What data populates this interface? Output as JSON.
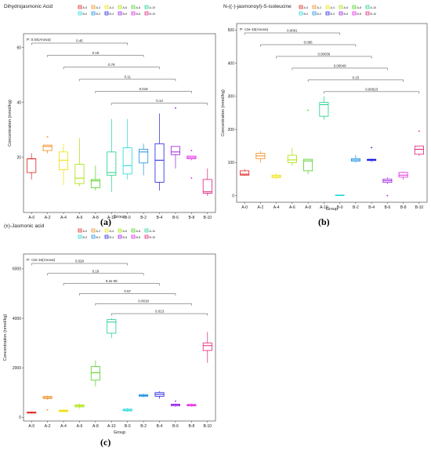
{
  "chart_data": [
    {
      "type": "box",
      "title": "Dihydrojasmonic Acid",
      "stat_text": "P: 0.04(Anova)",
      "xlabel": "Group",
      "ylabel": "Concentration (nmol/kg)",
      "ylim": [
        0,
        65
      ],
      "yticks": [
        20,
        40,
        60
      ],
      "categories": [
        "A-0",
        "A-2",
        "A-4",
        "A-6",
        "A-8",
        "A-10",
        "B-0",
        "B-2",
        "B-4",
        "B-6",
        "B-8",
        "B-10"
      ],
      "legend": {
        "position": "top",
        "entries": [
          "A-0",
          "A-2",
          "A-4",
          "A-6",
          "A-8",
          "A-10",
          "B-0",
          "B-2",
          "B-4",
          "B-6",
          "B-8",
          "B-10"
        ]
      },
      "panel_label": "(a)",
      "boxes": [
        {
          "min": 12,
          "q1": 14.5,
          "median": 19.5,
          "q3": 19.5,
          "max": 21.5,
          "outliers": []
        },
        {
          "min": 21.5,
          "q1": 22.5,
          "median": 24,
          "q3": 24.5,
          "max": 24.5,
          "outliers": [
            27.5
          ]
        },
        {
          "min": 10,
          "q1": 15.5,
          "median": 19,
          "q3": 22,
          "max": 25,
          "outliers": []
        },
        {
          "min": 9.5,
          "q1": 10.5,
          "median": 12.5,
          "q3": 17.5,
          "max": 27,
          "outliers": []
        },
        {
          "min": 8,
          "q1": 9,
          "median": 11.5,
          "q3": 12,
          "max": 17,
          "outliers": []
        },
        {
          "min": 7.5,
          "q1": 13.5,
          "median": 14.5,
          "q3": 22,
          "max": 34,
          "outliers": []
        },
        {
          "min": 12,
          "q1": 14,
          "median": 17,
          "q3": 23.5,
          "max": 34,
          "outliers": []
        },
        {
          "min": 13.5,
          "q1": 18,
          "median": 22,
          "q3": 23,
          "max": 25,
          "outliers": []
        },
        {
          "min": 8,
          "q1": 11,
          "median": 19,
          "q3": 25,
          "max": 36,
          "outliers": []
        },
        {
          "min": 16,
          "q1": 21,
          "median": 22,
          "q3": 24,
          "max": 24,
          "outliers": [
            38
          ]
        },
        {
          "min": 19,
          "q1": 19.5,
          "median": 20,
          "q3": 20.5,
          "max": 20.5,
          "outliers": [
            12.5,
            22.5
          ]
        },
        {
          "min": 6,
          "q1": 7,
          "median": 7.5,
          "q3": 12,
          "max": 16,
          "outliers": []
        }
      ],
      "comparisons": [
        {
          "from": "A-0",
          "to": "B-0",
          "label": "0.45"
        },
        {
          "from": "A-2",
          "to": "B-2",
          "label": "0.18"
        },
        {
          "from": "A-4",
          "to": "B-4",
          "label": "0.78"
        },
        {
          "from": "A-6",
          "to": "B-6",
          "label": "0.11"
        },
        {
          "from": "A-8",
          "to": "B-8",
          "label": "0.019"
        },
        {
          "from": "A-10",
          "to": "B-10",
          "label": "0.14"
        }
      ]
    },
    {
      "type": "box",
      "title": "N-((-)-jasmonoyl)-S-isoleucine",
      "stat_text": "P: <2e-16(Anova)",
      "xlabel": "Group",
      "ylabel": "Concentration (nmol/kg)",
      "ylim": [
        -20,
        520
      ],
      "yticks": [
        0,
        100,
        200,
        300,
        400,
        500
      ],
      "categories": [
        "A-0",
        "A-2",
        "A-4",
        "A-6",
        "A-8",
        "A-10",
        "B-0",
        "B-2",
        "B-4",
        "B-6",
        "B-8",
        "B-10"
      ],
      "legend": {
        "position": "top",
        "entries": [
          "A-0",
          "A-2",
          "A-4",
          "A-6",
          "A-8",
          "A-10",
          "B-0",
          "B-2",
          "B-4",
          "B-6",
          "B-8",
          "B-10"
        ]
      },
      "panel_label": "(b)",
      "boxes": [
        {
          "min": 60,
          "q1": 62,
          "median": 65,
          "q3": 75,
          "max": 80,
          "outliers": []
        },
        {
          "min": 100,
          "q1": 112,
          "median": 120,
          "q3": 128,
          "max": 135,
          "outliers": []
        },
        {
          "min": 50,
          "q1": 54,
          "median": 58,
          "q3": 62,
          "max": 68,
          "outliers": []
        },
        {
          "min": 90,
          "q1": 100,
          "median": 108,
          "q3": 122,
          "max": 145,
          "outliers": []
        },
        {
          "min": 65,
          "q1": 75,
          "median": 105,
          "q3": 110,
          "max": 110,
          "outliers": [
            258
          ]
        },
        {
          "min": 230,
          "q1": 240,
          "median": 275,
          "q3": 282,
          "max": 300,
          "outliers": []
        },
        {
          "min": 0,
          "q1": 0,
          "median": 1,
          "q3": 2,
          "max": 2,
          "outliers": []
        },
        {
          "min": 100,
          "q1": 104,
          "median": 108,
          "q3": 112,
          "max": 122,
          "outliers": []
        },
        {
          "min": 102,
          "q1": 106,
          "median": 108,
          "q3": 110,
          "max": 112,
          "outliers": [
            145
          ]
        },
        {
          "min": 35,
          "q1": 40,
          "median": 45,
          "q3": 50,
          "max": 55,
          "outliers": [
            0
          ]
        },
        {
          "min": 48,
          "q1": 56,
          "median": 62,
          "q3": 70,
          "max": 72,
          "outliers": []
        },
        {
          "min": 120,
          "q1": 125,
          "median": 140,
          "q3": 150,
          "max": 150,
          "outliers": [
            195
          ]
        }
      ],
      "comparisons": [
        {
          "from": "A-0",
          "to": "B-0",
          "label": "0.0001"
        },
        {
          "from": "A-2",
          "to": "B-2",
          "label": "0.095"
        },
        {
          "from": "A-4",
          "to": "B-4",
          "label": "0.00036"
        },
        {
          "from": "A-6",
          "to": "B-6",
          "label": "0.00049"
        },
        {
          "from": "A-8",
          "to": "B-8",
          "label": "0.15"
        },
        {
          "from": "A-10",
          "to": "B-10",
          "label": "0.00023"
        }
      ]
    },
    {
      "type": "box",
      "title": "(±)-Jasmonic acid",
      "stat_text": "P: <2e-16(Anova)",
      "xlabel": "Group",
      "ylabel": "Concentration (nmol/kg)",
      "ylim": [
        -150,
        6600
      ],
      "yticks": [
        0,
        2000,
        4000,
        6000
      ],
      "categories": [
        "A-0",
        "A-2",
        "A-4",
        "A-6",
        "A-8",
        "A-10",
        "B-0",
        "B-2",
        "B-4",
        "B-6",
        "B-8",
        "B-10"
      ],
      "legend": {
        "position": "top",
        "entries": [
          "A-0",
          "A-2",
          "A-4",
          "A-6",
          "A-8",
          "A-10",
          "B-0",
          "B-2",
          "B-4",
          "B-6",
          "B-8",
          "B-10"
        ]
      },
      "panel_label": "(c)",
      "boxes": [
        {
          "min": 150,
          "q1": 170,
          "median": 190,
          "q3": 210,
          "max": 230,
          "outliers": []
        },
        {
          "min": 700,
          "q1": 760,
          "median": 800,
          "q3": 840,
          "max": 880,
          "outliers": [
            300
          ]
        },
        {
          "min": 200,
          "q1": 230,
          "median": 260,
          "q3": 290,
          "max": 320,
          "outliers": []
        },
        {
          "min": 350,
          "q1": 420,
          "median": 460,
          "q3": 500,
          "max": 560,
          "outliers": []
        },
        {
          "min": 1250,
          "q1": 1500,
          "median": 1800,
          "q3": 2050,
          "max": 2300,
          "outliers": []
        },
        {
          "min": 3200,
          "q1": 3400,
          "median": 3850,
          "q3": 3950,
          "max": 4000,
          "outliers": []
        },
        {
          "min": 220,
          "q1": 260,
          "median": 290,
          "q3": 330,
          "max": 380,
          "outliers": []
        },
        {
          "min": 800,
          "q1": 850,
          "median": 880,
          "q3": 920,
          "max": 960,
          "outliers": []
        },
        {
          "min": 750,
          "q1": 850,
          "median": 930,
          "q3": 1000,
          "max": 1050,
          "outliers": []
        },
        {
          "min": 420,
          "q1": 460,
          "median": 500,
          "q3": 530,
          "max": 560,
          "outliers": [
            650
          ]
        },
        {
          "min": 430,
          "q1": 460,
          "median": 490,
          "q3": 520,
          "max": 550,
          "outliers": []
        },
        {
          "min": 2200,
          "q1": 2700,
          "median": 2900,
          "q3": 3000,
          "max": 3450,
          "outliers": []
        }
      ],
      "comparisons": [
        {
          "from": "A-0",
          "to": "B-0",
          "label": "0.028"
        },
        {
          "from": "A-2",
          "to": "B-2",
          "label": "0.19"
        },
        {
          "from": "A-4",
          "to": "B-4",
          "label": "9.2e-05"
        },
        {
          "from": "A-6",
          "to": "B-6",
          "label": "0.57"
        },
        {
          "from": "A-8",
          "to": "B-8",
          "label": "0.0018"
        },
        {
          "from": "A-10",
          "to": "B-10",
          "label": "0.013"
        }
      ]
    }
  ],
  "group_colors": {
    "A-0": "#e0201b",
    "A-2": "#f08a1c",
    "A-4": "#f0e000",
    "A-6": "#a8e000",
    "A-8": "#50d020",
    "A-10": "#20d088",
    "B-0": "#20d8d8",
    "B-2": "#1c90e0",
    "B-4": "#2020e0",
    "B-6": "#9a20e0",
    "B-8": "#e020e0",
    "B-10": "#e0207a"
  }
}
